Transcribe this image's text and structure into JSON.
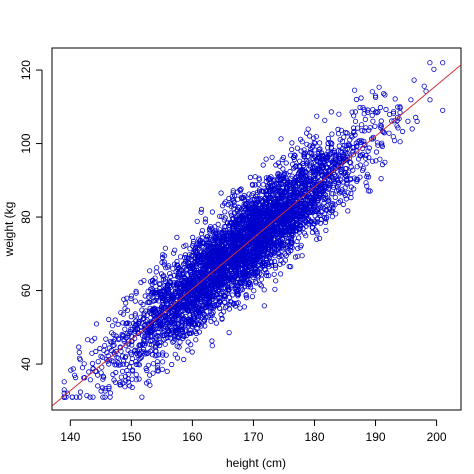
{
  "chart_data": {
    "type": "scatter",
    "title": "",
    "xlabel": "height (cm)",
    "ylabel": "weight (kg",
    "xlim": [
      137,
      204
    ],
    "ylim": [
      27.5,
      126
    ],
    "xticks": [
      140,
      150,
      160,
      170,
      180,
      190,
      200
    ],
    "yticks": [
      40,
      60,
      80,
      100,
      120
    ],
    "grid": false,
    "legend": "none",
    "point_color": "#0000cc",
    "line_color": "#cc3333",
    "point_marker": "open-circle",
    "regression_line": {
      "x": [
        137,
        204
      ],
      "y": [
        28.6,
        121.4
      ]
    },
    "points": {
      "count": 4500,
      "x_range": [
        139,
        201
      ],
      "y_range": [
        31,
        122
      ],
      "x_mean": 168,
      "x_sd": 9.8,
      "slope": 1.385,
      "intercept": -161,
      "residual_sd": 6.2,
      "x": [
        139,
        141,
        142,
        144,
        147,
        153,
        190,
        194,
        196,
        201,
        182,
        184
      ],
      "y": [
        33,
        31,
        39,
        47,
        45,
        37,
        113,
        110,
        104,
        122,
        97,
        108
      ]
    }
  }
}
